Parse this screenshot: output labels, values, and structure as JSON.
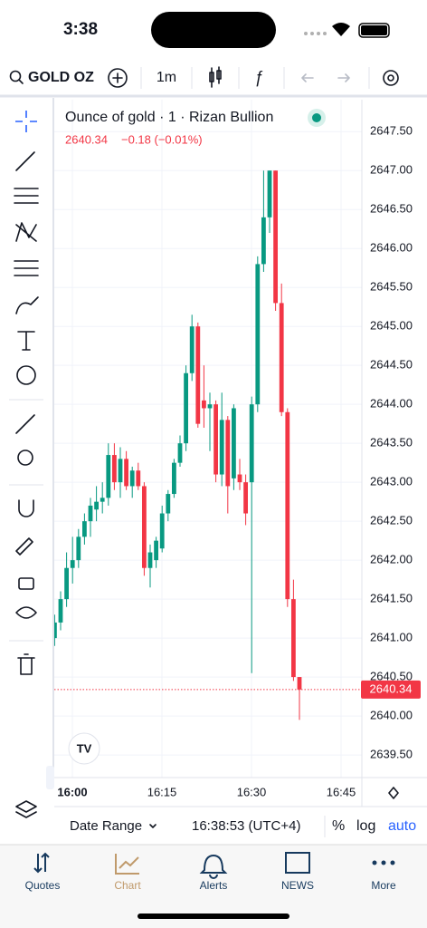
{
  "status_bar": {
    "time": "3:38"
  },
  "toolbar": {
    "symbol": "GOLD OZ",
    "interval": "1m"
  },
  "chart_data": {
    "type": "candlestick",
    "title": "Ounce of gold · 1 · Rizan Bullion",
    "last_price": 2640.34,
    "change": "−0.18 (−0.01%)",
    "open": [
      2640.6,
      2641.0,
      2641.2,
      2641.5,
      2641.9,
      2642.0,
      2642.3,
      2642.5,
      2642.65,
      2642.75,
      2642.8,
      2643.35,
      2643.0,
      2643.3,
      2642.95,
      2643.15,
      2642.95,
      2641.9,
      2642.0,
      2642.15,
      2642.6,
      2642.85,
      2643.25,
      2643.5,
      2644.4,
      2645.0,
      2644.05,
      2643.95,
      2644.0,
      2643.1,
      2643.8,
      2643.05,
      2643.1,
      2643.0,
      2643.0,
      2644.0,
      2645.8,
      2646.4,
      2647.0,
      2645.3,
      2643.9,
      2641.5,
      2640.5
    ],
    "high": [
      2641.1,
      2641.3,
      2641.6,
      2642.1,
      2642.3,
      2642.4,
      2642.6,
      2642.8,
      2642.95,
      2643.0,
      2643.5,
      2643.5,
      2643.45,
      2643.4,
      2643.2,
      2643.25,
      2643.0,
      2642.2,
      2642.3,
      2642.7,
      2642.9,
      2643.3,
      2643.6,
      2644.5,
      2645.15,
      2645.05,
      2644.5,
      2644.15,
      2644.05,
      2644.15,
      2643.85,
      2644.0,
      2643.3,
      2643.1,
      2644.1,
      2645.9,
      2647.0,
      2647.0,
      2647.0,
      2645.55,
      2643.95,
      2641.75,
      2640.5
    ],
    "low": [
      2640.5,
      2640.9,
      2641.1,
      2641.4,
      2641.7,
      2641.9,
      2642.2,
      2642.3,
      2642.5,
      2642.6,
      2642.7,
      2642.9,
      2642.8,
      2642.9,
      2642.8,
      2642.9,
      2641.8,
      2641.65,
      2641.9,
      2642.1,
      2642.5,
      2642.8,
      2643.2,
      2643.4,
      2644.3,
      2643.7,
      2643.7,
      2643.4,
      2643.0,
      2642.95,
      2642.6,
      2642.9,
      2642.9,
      2642.45,
      2640.55,
      2643.9,
      2645.7,
      2646.2,
      2645.2,
      2643.85,
      2641.4,
      2640.45,
      2639.95
    ],
    "close": [
      2641.0,
      2641.2,
      2641.5,
      2641.9,
      2642.0,
      2642.3,
      2642.5,
      2642.7,
      2642.75,
      2642.8,
      2643.35,
      2643.0,
      2643.3,
      2642.95,
      2643.15,
      2642.95,
      2641.9,
      2642.1,
      2642.25,
      2642.6,
      2642.85,
      2643.25,
      2643.5,
      2644.4,
      2645.0,
      2643.75,
      2643.95,
      2644.0,
      2643.1,
      2643.8,
      2642.95,
      2643.95,
      2643.0,
      2642.6,
      2644.0,
      2645.8,
      2646.4,
      2647.0,
      2645.3,
      2643.9,
      2641.5,
      2640.5,
      2640.34
    ],
    "up_color": "#089981",
    "down_color": "#f23645",
    "ylim": [
      2639.21,
      2647.91
    ],
    "yticks": [
      {
        "value": 2639.5,
        "label": "2639.50"
      },
      {
        "value": 2640,
        "label": "2640.00"
      },
      {
        "value": 2640.5,
        "label": "2640.50"
      },
      {
        "value": 2641,
        "label": "2641.00"
      },
      {
        "value": 2641.5,
        "label": "2641.50"
      },
      {
        "value": 2642,
        "label": "2642.00"
      },
      {
        "value": 2642.5,
        "label": "2642.50"
      },
      {
        "value": 2643,
        "label": "2643.00"
      },
      {
        "value": 2643.5,
        "label": "2643.50"
      },
      {
        "value": 2644,
        "label": "2644.00"
      },
      {
        "value": 2644.5,
        "label": "2644.50"
      },
      {
        "value": 2645,
        "label": "2645.00"
      },
      {
        "value": 2645.5,
        "label": "2645.50"
      },
      {
        "value": 2646,
        "label": "2646.00"
      },
      {
        "value": 2646.5,
        "label": "2646.50"
      },
      {
        "value": 2647,
        "label": "2647.00"
      },
      {
        "value": 2647.5,
        "label": "2647.50"
      }
    ],
    "xtick_labels": [
      "16:00",
      "16:15",
      "16:30",
      "16:45"
    ],
    "grid": true
  },
  "bottom_bar": {
    "date_range": "Date Range",
    "clock": "16:38:53 (UTC+4)",
    "percent": "%",
    "log": "log",
    "auto": "auto"
  },
  "tabs": [
    "Quotes",
    "Chart",
    "Alerts",
    "NEWS",
    "More"
  ]
}
